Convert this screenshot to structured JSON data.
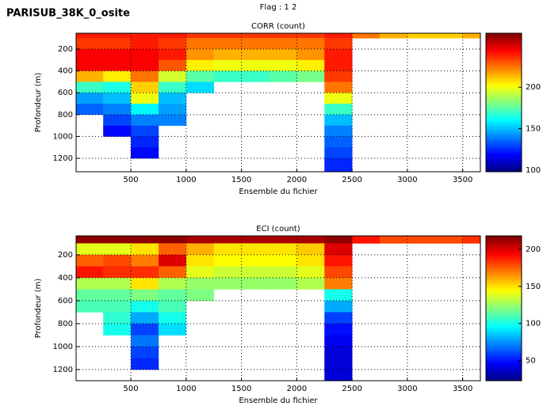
{
  "header": {
    "title": "PARISUB_38K_0_osite",
    "subtitle": "Flag : 1  2"
  },
  "chart_data": [
    {
      "type": "heatmap",
      "title": "CORR (count)",
      "x_label": "Ensemble du fichier",
      "y_label": "Profondeur (m)",
      "xlim": [
        5,
        3660
      ],
      "ylim": [
        55,
        1323
      ],
      "y_reversed": true,
      "grid": true,
      "xticks": [
        500,
        1000,
        1500,
        2000,
        2500,
        3000,
        3500
      ],
      "yticks": [
        200,
        400,
        600,
        800,
        1000,
        1200
      ],
      "clim": [
        98,
        265
      ],
      "cticks": [
        100,
        150,
        200
      ],
      "x_edges": [
        5,
        250,
        500,
        750,
        1000,
        1250,
        1500,
        1750,
        2000,
        2250,
        2500,
        2750,
        3000,
        3250,
        3500,
        3660
      ],
      "y_edges": [
        55,
        100,
        200,
        300,
        400,
        500,
        600,
        700,
        800,
        900,
        1000,
        1100,
        1200,
        1323
      ],
      "z": [
        [
          240,
          240,
          240,
          240,
          235,
          235,
          235,
          235,
          235,
          240,
          225,
          215,
          210,
          210,
          215
        ],
        [
          235,
          235,
          240,
          235,
          225,
          225,
          225,
          225,
          225,
          235,
          null,
          null,
          null,
          null,
          null
        ],
        [
          245,
          245,
          245,
          240,
          220,
          215,
          215,
          215,
          220,
          240,
          null,
          null,
          null,
          null,
          null
        ],
        [
          245,
          245,
          245,
          230,
          205,
          200,
          200,
          200,
          205,
          240,
          null,
          null,
          null,
          null,
          null
        ],
        [
          215,
          205,
          225,
          195,
          175,
          170,
          170,
          175,
          180,
          235,
          null,
          null,
          null,
          null,
          null
        ],
        [
          170,
          165,
          210,
          170,
          155,
          null,
          null,
          null,
          null,
          225,
          null,
          null,
          null,
          null,
          null
        ],
        [
          145,
          150,
          200,
          150,
          null,
          null,
          null,
          null,
          null,
          200,
          null,
          null,
          null,
          null,
          null
        ],
        [
          135,
          140,
          160,
          145,
          null,
          null,
          null,
          null,
          null,
          170,
          null,
          null,
          null,
          null,
          null
        ],
        [
          null,
          130,
          140,
          140,
          null,
          null,
          null,
          null,
          null,
          150,
          null,
          null,
          null,
          null,
          null
        ],
        [
          null,
          120,
          130,
          null,
          null,
          null,
          null,
          null,
          null,
          140,
          null,
          null,
          null,
          null,
          null
        ],
        [
          null,
          null,
          125,
          null,
          null,
          null,
          null,
          null,
          null,
          135,
          null,
          null,
          null,
          null,
          null
        ],
        [
          null,
          null,
          120,
          null,
          null,
          null,
          null,
          null,
          null,
          130,
          null,
          null,
          null,
          null,
          null
        ],
        [
          null,
          null,
          null,
          null,
          null,
          null,
          null,
          null,
          null,
          125,
          null,
          null,
          null,
          null,
          null
        ]
      ]
    },
    {
      "type": "heatmap",
      "title": "ECI (count)",
      "x_label": "Ensemble du fichier",
      "y_label": "Profondeur (m)",
      "xlim": [
        5,
        3660
      ],
      "ylim": [
        35,
        1297
      ],
      "y_reversed": true,
      "grid": true,
      "xticks": [
        500,
        1000,
        1500,
        2000,
        2500,
        3000,
        3500
      ],
      "yticks": [
        200,
        400,
        600,
        800,
        1000,
        1200
      ],
      "clim": [
        23,
        218
      ],
      "cticks": [
        50,
        100,
        150,
        200
      ],
      "x_edges": [
        5,
        250,
        500,
        750,
        1000,
        1250,
        1500,
        1750,
        2000,
        2250,
        2500,
        2750,
        3000,
        3250,
        3500,
        3660
      ],
      "y_edges": [
        35,
        100,
        200,
        300,
        400,
        500,
        600,
        700,
        800,
        900,
        1000,
        1100,
        1200,
        1297
      ],
      "z": [
        [
          215,
          215,
          215,
          215,
          210,
          210,
          210,
          210,
          210,
          215,
          190,
          180,
          180,
          180,
          185
        ],
        [
          140,
          140,
          150,
          175,
          160,
          150,
          150,
          150,
          155,
          200,
          null,
          null,
          null,
          null,
          null
        ],
        [
          175,
          180,
          170,
          200,
          150,
          145,
          145,
          145,
          150,
          190,
          null,
          null,
          null,
          null,
          null
        ],
        [
          190,
          185,
          185,
          175,
          140,
          135,
          135,
          135,
          140,
          180,
          null,
          null,
          null,
          null,
          null
        ],
        [
          130,
          130,
          150,
          130,
          125,
          125,
          125,
          125,
          130,
          170,
          null,
          null,
          null,
          null,
          null
        ],
        [
          115,
          115,
          120,
          115,
          120,
          null,
          null,
          null,
          null,
          100,
          null,
          null,
          null,
          null,
          null
        ],
        [
          110,
          110,
          100,
          110,
          null,
          null,
          null,
          null,
          null,
          80,
          null,
          null,
          null,
          null,
          null
        ],
        [
          null,
          105,
          80,
          100,
          null,
          null,
          null,
          null,
          null,
          60,
          null,
          null,
          null,
          null,
          null
        ],
        [
          null,
          100,
          60,
          90,
          null,
          null,
          null,
          null,
          null,
          50,
          null,
          null,
          null,
          null,
          null
        ],
        [
          null,
          null,
          70,
          null,
          null,
          null,
          null,
          null,
          null,
          45,
          null,
          null,
          null,
          null,
          null
        ],
        [
          null,
          null,
          60,
          null,
          null,
          null,
          null,
          null,
          null,
          40,
          null,
          null,
          null,
          null,
          null
        ],
        [
          null,
          null,
          55,
          null,
          null,
          null,
          null,
          null,
          null,
          40,
          null,
          null,
          null,
          null,
          null
        ],
        [
          null,
          null,
          null,
          null,
          null,
          null,
          null,
          null,
          null,
          40,
          null,
          null,
          null,
          null,
          null
        ]
      ]
    }
  ]
}
